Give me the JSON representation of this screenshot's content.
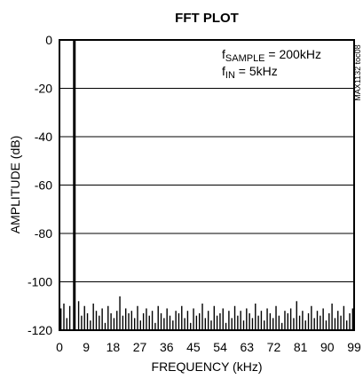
{
  "chart_data": {
    "type": "line",
    "title": "FFT PLOT",
    "xlabel": "FREQUENCY (kHz)",
    "ylabel": "AMPLITUDE (dB)",
    "xlim": [
      0,
      99
    ],
    "ylim": [
      -120,
      0
    ],
    "x_ticks": [
      "0",
      "9",
      "18",
      "27",
      "36",
      "45",
      "54",
      "63",
      "72",
      "81",
      "90",
      "99"
    ],
    "y_ticks": [
      "0",
      "-20",
      "-40",
      "-60",
      "-80",
      "-100",
      "-120"
    ],
    "grid": "horizontal",
    "series": [
      {
        "signal_peak": {
          "x": 5,
          "y": 0
        },
        "noise_floor_db": [
          -111,
          -109,
          -115,
          -110,
          -113,
          -112,
          -108,
          -114,
          -110,
          -113,
          -116,
          -109,
          -112,
          -114,
          -111,
          -117,
          -110,
          -113,
          -115,
          -112,
          -106,
          -114,
          -111,
          -113,
          -112,
          -115,
          -110,
          -116,
          -113,
          -111,
          -114,
          -112,
          -117,
          -110,
          -113,
          -115,
          -111,
          -114,
          -116,
          -112,
          -113,
          -110,
          -115,
          -112,
          -117,
          -111,
          -114,
          -113,
          -109,
          -115,
          -112,
          -116,
          -110,
          -114,
          -113,
          -111,
          -117,
          -112,
          -115,
          -110,
          -114,
          -112,
          -116,
          -111,
          -113,
          -115,
          -109,
          -114,
          -112,
          -116,
          -111,
          -113,
          -115,
          -110,
          -114,
          -117,
          -112,
          -113,
          -111,
          -115,
          -108,
          -114,
          -112,
          -116,
          -113,
          -110,
          -115,
          -112,
          -114,
          -111,
          -116,
          -113,
          -109,
          -115,
          -112,
          -114,
          -110,
          -116,
          -113,
          -111
        ]
      }
    ]
  },
  "annotations": {
    "fsample_main": "f",
    "fsample_sub": "SAMPLE",
    "fsample_value": " = 200kHz",
    "fin_main": "f",
    "fin_sub": "IN",
    "fin_value": " = 5kHz"
  },
  "side_code": "MAX1132 toc08"
}
